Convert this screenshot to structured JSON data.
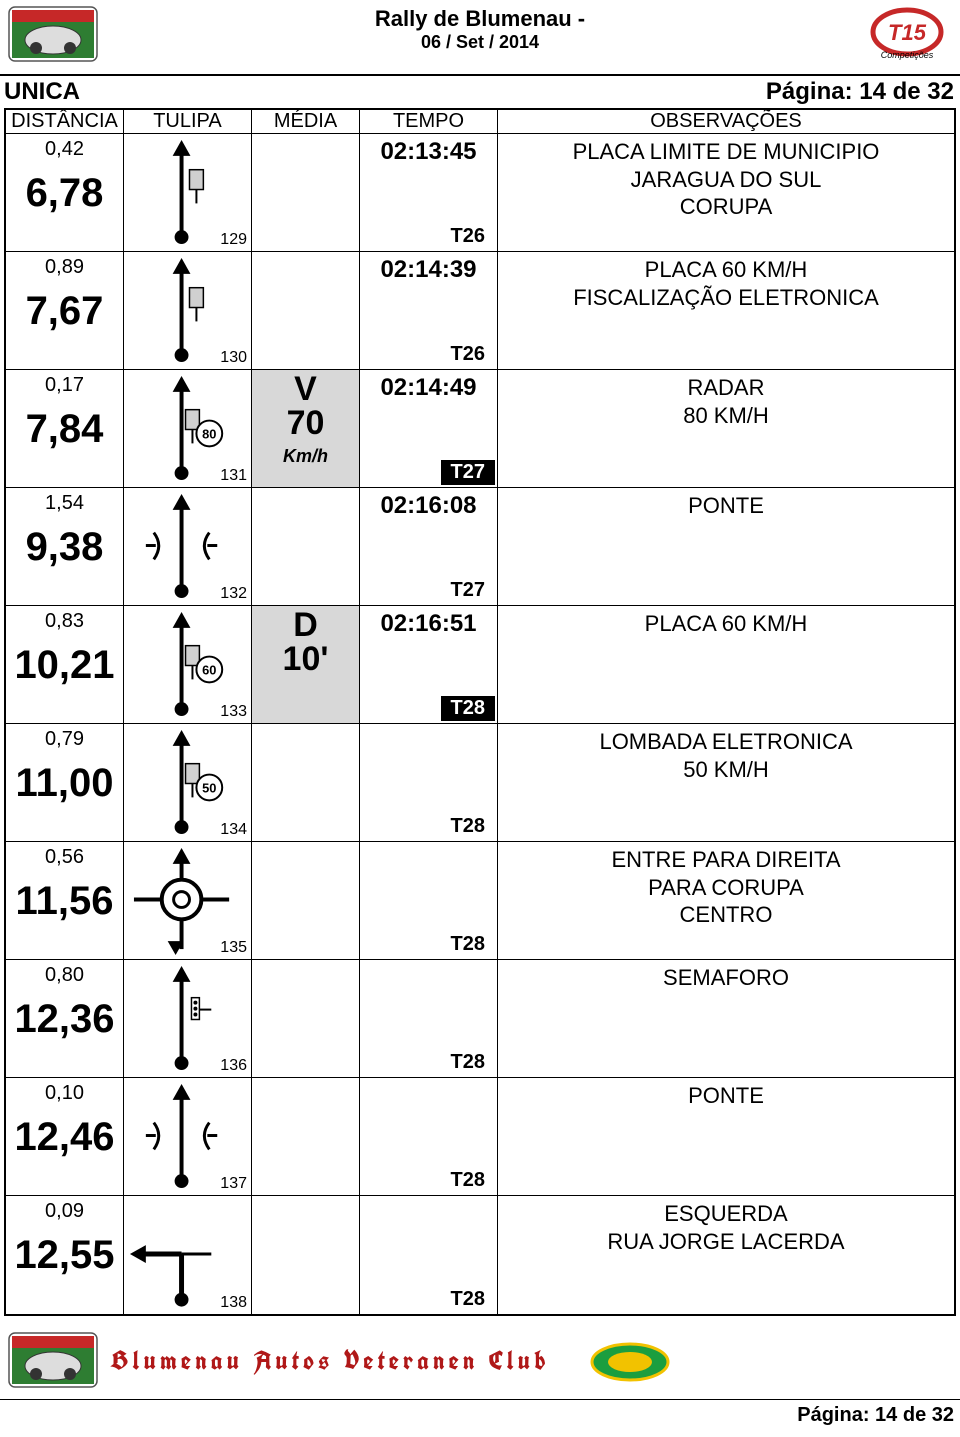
{
  "header": {
    "title": "Rally de Blumenau -",
    "date": "06 / Set / 2014"
  },
  "subheader": {
    "left": "UNICA",
    "right": "Página: 14 de 32"
  },
  "columns": {
    "dist": "DISTÂNCIA",
    "tulipa": "TULIPA",
    "media": "MÉDIA",
    "tempo": "TEMPO",
    "obs": "OBSERVAÇÕES"
  },
  "rows": [
    {
      "partial": "0,42",
      "total": "6,78",
      "tulipa_num": "129",
      "tulipa_type": "straight_sign",
      "media": null,
      "tempo_time": "02:13:45",
      "tempo_tag": "T26",
      "tempo_inverted": false,
      "obs": [
        "PLACA LIMITE DE MUNICIPIO",
        "JARAGUA DO SUL",
        "CORUPA"
      ]
    },
    {
      "partial": "0,89",
      "total": "7,67",
      "tulipa_num": "130",
      "tulipa_type": "straight_sign",
      "media": null,
      "tempo_time": "02:14:39",
      "tempo_tag": "T26",
      "tempo_inverted": false,
      "obs": [
        "PLACA 60 KM/H",
        "FISCALIZAÇÃO ELETRONICA"
      ]
    },
    {
      "partial": "0,17",
      "total": "7,84",
      "tulipa_num": "131",
      "tulipa_type": "straight_sign_speed",
      "tulipa_speed": "80",
      "media": {
        "top": "V",
        "val": "70",
        "unit": "Km/h"
      },
      "tempo_time": "02:14:49",
      "tempo_tag": "T27",
      "tempo_inverted": true,
      "obs": [
        "RADAR",
        "80 KM/H"
      ]
    },
    {
      "partial": "1,54",
      "total": "9,38",
      "tulipa_num": "132",
      "tulipa_type": "bridge",
      "media": null,
      "tempo_time": "02:16:08",
      "tempo_tag": "T27",
      "tempo_inverted": false,
      "obs": [
        "PONTE"
      ]
    },
    {
      "partial": "0,83",
      "total": "10,21",
      "tulipa_num": "133",
      "tulipa_type": "straight_sign_speed",
      "tulipa_speed": "60",
      "media": {
        "top": "D",
        "val": "10'",
        "unit": ""
      },
      "tempo_time": "02:16:51",
      "tempo_tag": "T28",
      "tempo_inverted": true,
      "obs": [
        "PLACA 60 KM/H"
      ]
    },
    {
      "partial": "0,79",
      "total": "11,00",
      "tulipa_num": "134",
      "tulipa_type": "straight_sign_speed",
      "tulipa_speed": "50",
      "media": null,
      "tempo_time": "",
      "tempo_tag": "T28",
      "tempo_inverted": false,
      "obs": [
        "LOMBADA ELETRONICA",
        "50 KM/H"
      ]
    },
    {
      "partial": "0,56",
      "total": "11,56",
      "tulipa_num": "135",
      "tulipa_type": "roundabout",
      "media": null,
      "tempo_time": "",
      "tempo_tag": "T28",
      "tempo_inverted": false,
      "obs": [
        "ENTRE PARA DIREITA",
        "PARA CORUPA",
        "CENTRO"
      ]
    },
    {
      "partial": "0,80",
      "total": "12,36",
      "tulipa_num": "136",
      "tulipa_type": "semaforo",
      "media": null,
      "tempo_time": "",
      "tempo_tag": "T28",
      "tempo_inverted": false,
      "obs": [
        "SEMAFORO"
      ]
    },
    {
      "partial": "0,10",
      "total": "12,46",
      "tulipa_num": "137",
      "tulipa_type": "bridge",
      "media": null,
      "tempo_time": "",
      "tempo_tag": "T28",
      "tempo_inverted": false,
      "obs": [
        "PONTE"
      ]
    },
    {
      "partial": "0,09",
      "total": "12,55",
      "tulipa_num": "138",
      "tulipa_type": "left_turn",
      "media": null,
      "tempo_time": "",
      "tempo_tag": "T28",
      "tempo_inverted": false,
      "obs": [
        "ESQUERDA",
        "RUA JORGE LACERDA"
      ]
    }
  ],
  "footer": {
    "club": "Blumenau Autos Veteranen Club",
    "page": "Página: 14 de 32"
  },
  "colors": {
    "text": "#000000",
    "bg": "#ffffff",
    "shaded": "#d8d8d8",
    "footer_red": "#b01818",
    "logo_green": "#2e7d32",
    "logo_red": "#c62828",
    "badge_green": "#1b9e3f",
    "badge_yellow": "#f2c200"
  }
}
